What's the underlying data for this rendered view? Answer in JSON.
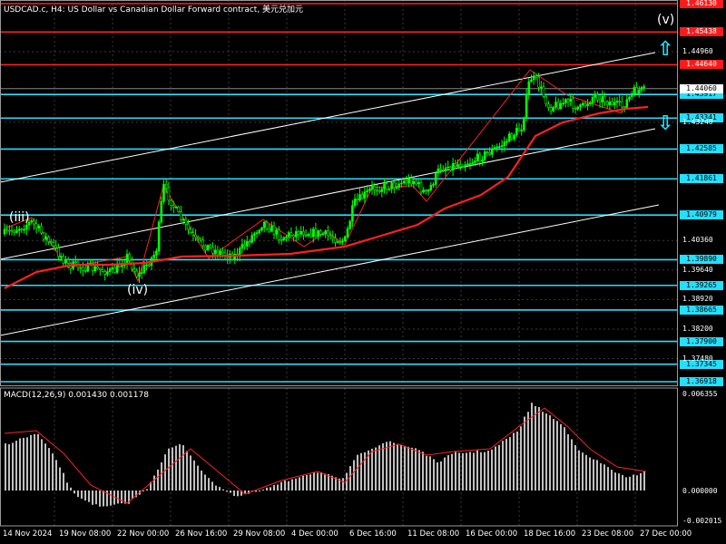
{
  "header": {
    "title": "USDCAD.c, H4:  US Dollar vs Canadian Dollar Forward contract, 美元兑加元"
  },
  "indicator": {
    "label": "MACD(12,26,9) 0.001430 0.001178",
    "scale": [
      "0.006355",
      "0.000000",
      "-0.002015"
    ]
  },
  "wave_labels": [
    "(iii)",
    "(iv)",
    "(v)"
  ],
  "price_axis_ticks": [
    "1.44960",
    "1.43240",
    "1.40360",
    "1.39640",
    "1.38920",
    "1.38200",
    "1.37480"
  ],
  "horizontal_levels": [
    {
      "price": "1.46130",
      "color": "red"
    },
    {
      "price": "1.45438",
      "color": "red"
    },
    {
      "price": "1.44640",
      "color": "red"
    },
    {
      "price": "1.43917",
      "color": "cyan"
    },
    {
      "price": "1.43341",
      "color": "cyan"
    },
    {
      "price": "1.42585",
      "color": "cyan"
    },
    {
      "price": "1.41861",
      "color": "cyan"
    },
    {
      "price": "1.40979",
      "color": "cyan"
    },
    {
      "price": "1.39890",
      "color": "cyan"
    },
    {
      "price": "1.39265",
      "color": "cyan"
    },
    {
      "price": "1.38665",
      "color": "cyan"
    },
    {
      "price": "1.37900",
      "color": "cyan"
    },
    {
      "price": "1.37345",
      "color": "cyan"
    },
    {
      "price": "1.36918",
      "color": "cyan"
    }
  ],
  "current_price": "1.44060",
  "time_axis": [
    "14 Nov 2024",
    "19 Nov 08:00",
    "22 Nov 00:00",
    "26 Nov 16:00",
    "29 Nov 08:00",
    "4 Dec 00:00",
    "6 Dec 16:00",
    "11 Dec 08:00",
    "16 Dec 00:00",
    "18 Dec 16:00",
    "23 Dec 08:00",
    "27 Dec 00:00"
  ],
  "colors": {
    "background": "#000000",
    "grid": "#3a3a3a",
    "candles": "#00ff00",
    "moving_average": "#ff2020",
    "channel": "#ffffff",
    "resistance": "#ff2020",
    "support": "#22e0ff",
    "macd_histogram": "#c0c0c0",
    "macd_signal": "#ff2020"
  },
  "arrows": {
    "up": "up-arrow-icon",
    "down": "down-arrow-icon"
  }
}
